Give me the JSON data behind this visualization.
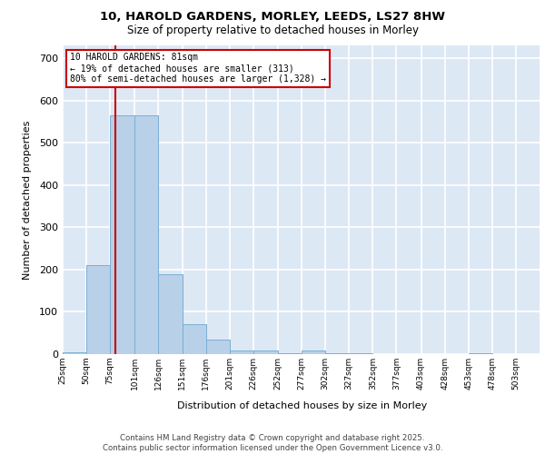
{
  "title_line1": "10, HAROLD GARDENS, MORLEY, LEEDS, LS27 8HW",
  "title_line2": "Size of property relative to detached houses in Morley",
  "xlabel": "Distribution of detached houses by size in Morley",
  "ylabel": "Number of detached properties",
  "bar_color": "#b8d0e8",
  "bar_edge_color": "#7aafd4",
  "background_color": "#dde8f5",
  "grid_color": "#ffffff",
  "annotation_text": "10 HAROLD GARDENS: 81sqm\n← 19% of detached houses are smaller (313)\n80% of semi-detached houses are larger (1,328) →",
  "vline_x": 81,
  "vline_color": "#cc0000",
  "annotation_box_color": "#cc0000",
  "footer_line1": "Contains HM Land Registry data © Crown copyright and database right 2025.",
  "footer_line2": "Contains public sector information licensed under the Open Government Licence v3.0.",
  "bin_edges": [
    25,
    50,
    75,
    101,
    126,
    151,
    176,
    201,
    226,
    252,
    277,
    302,
    327,
    352,
    377,
    403,
    428,
    453,
    478,
    503,
    528
  ],
  "values": [
    5,
    210,
    565,
    565,
    190,
    70,
    35,
    8,
    8,
    3,
    8,
    3,
    3,
    0,
    0,
    0,
    0,
    3,
    0,
    0
  ],
  "ylim": [
    0,
    730
  ],
  "yticks": [
    0,
    100,
    200,
    300,
    400,
    500,
    600,
    700
  ],
  "fig_width": 6.0,
  "fig_height": 5.0
}
